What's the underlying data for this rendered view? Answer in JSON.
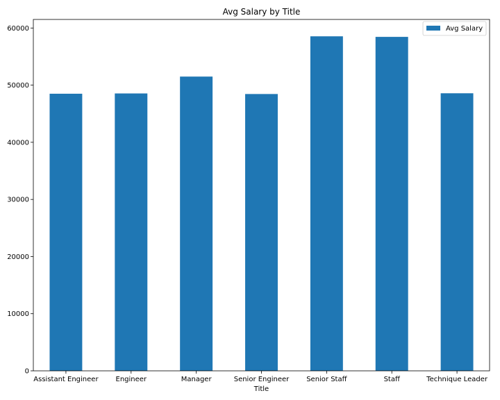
{
  "chart_data": {
    "type": "bar",
    "title": "Avg Salary by Title",
    "xlabel": "Title",
    "ylabel": "",
    "categories": [
      "Assistant Engineer",
      "Engineer",
      "Manager",
      "Senior Engineer",
      "Senior Staff",
      "Staff",
      "Technique Leader"
    ],
    "series": [
      {
        "name": "Avg Salary",
        "values": [
          48500,
          48550,
          51500,
          48450,
          58550,
          58450,
          48580
        ]
      }
    ],
    "ylim": [
      0,
      61500
    ],
    "yticks": [
      0,
      10000,
      20000,
      30000,
      40000,
      50000,
      60000
    ],
    "legend_position": "top-right",
    "grid": false,
    "colors": {
      "bar": "#1f77b4",
      "axis": "#000000",
      "legend_border": "#cccccc"
    }
  }
}
